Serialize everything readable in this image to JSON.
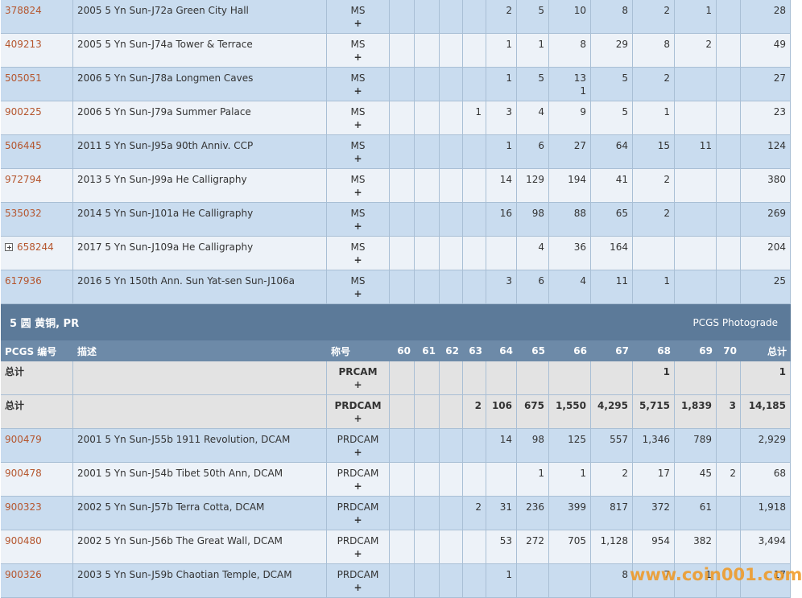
{
  "rows_top": [
    {
      "id": "378824",
      "desc": "2005 5 Yn Sun-J72a Green City Hall",
      "designation": "MS",
      "plus": "+",
      "grades": [
        null,
        null,
        null,
        null,
        "2",
        "5",
        "10",
        "8",
        "2",
        "1",
        null
      ],
      "total": "28"
    },
    {
      "id": "409213",
      "desc": "2005 5 Yn Sun-J74a Tower & Terrace",
      "designation": "MS",
      "plus": "+",
      "grades": [
        null,
        null,
        null,
        null,
        "1",
        "1",
        "8",
        "29",
        "8",
        "2",
        null
      ],
      "total": "49"
    },
    {
      "id": "505051",
      "desc": "2006 5 Yn Sun-J78a Longmen Caves",
      "designation": "MS",
      "plus": "+",
      "grades": [
        null,
        null,
        null,
        null,
        "1",
        "5",
        [
          "13",
          "1"
        ],
        "5",
        "2",
        null,
        null
      ],
      "total": "27"
    },
    {
      "id": "900225",
      "desc": "2006 5 Yn Sun-J79a Summer Palace",
      "designation": "MS",
      "plus": "+",
      "grades": [
        null,
        null,
        null,
        "1",
        "3",
        "4",
        "9",
        "5",
        "1",
        null,
        null
      ],
      "total": "23"
    },
    {
      "id": "506445",
      "desc": "2011 5 Yn Sun-J95a 90th Anniv. CCP",
      "designation": "MS",
      "plus": "+",
      "grades": [
        null,
        null,
        null,
        null,
        "1",
        "6",
        "27",
        "64",
        "15",
        "11",
        null
      ],
      "total": "124"
    },
    {
      "id": "972794",
      "desc": "2013 5 Yn Sun-J99a He Calligraphy",
      "designation": "MS",
      "plus": "+",
      "grades": [
        null,
        null,
        null,
        null,
        "14",
        "129",
        "194",
        "41",
        "2",
        null,
        null
      ],
      "total": "380"
    },
    {
      "id": "535032",
      "desc": "2014 5 Yn Sun-J101a He Calligraphy",
      "designation": "MS",
      "plus": "+",
      "grades": [
        null,
        null,
        null,
        null,
        "16",
        "98",
        "88",
        "65",
        "2",
        null,
        null
      ],
      "total": "269"
    },
    {
      "id": "658244",
      "expandable": true,
      "desc": "2017 5 Yn Sun-J109a He Calligraphy",
      "designation": "MS",
      "plus": "+",
      "grades": [
        null,
        null,
        null,
        null,
        null,
        "4",
        "36",
        "164",
        null,
        null,
        null
      ],
      "total": "204"
    },
    {
      "id": "617936",
      "desc": "2016 5 Yn 150th Ann. Sun Yat-sen Sun-J106a",
      "designation": "MS",
      "plus": "+",
      "grades": [
        null,
        null,
        null,
        null,
        "3",
        "6",
        "4",
        "11",
        "1",
        null,
        null
      ],
      "total": "25"
    }
  ],
  "section": {
    "title": "5 圆 黄铜, PR",
    "link": "PCGS Photograde"
  },
  "header": [
    "PCGS 编号",
    "描述",
    "称号",
    "60",
    "61",
    "62",
    "63",
    "64",
    "65",
    "66",
    "67",
    "68",
    "69",
    "70",
    "总计"
  ],
  "summary": [
    {
      "label": "总计",
      "designation": "PRCAM",
      "plus": "+",
      "grades": [
        null,
        null,
        null,
        null,
        null,
        null,
        null,
        null,
        "1",
        null,
        null
      ],
      "total": "1"
    },
    {
      "label": "总计",
      "designation": "PRDCAM",
      "plus": "+",
      "grades": [
        null,
        null,
        null,
        "2",
        "106",
        "675",
        "1,550",
        "4,295",
        "5,715",
        "1,839",
        "3"
      ],
      "total": "14,185"
    }
  ],
  "rows_bottom": [
    {
      "id": "900479",
      "desc": "2001 5 Yn Sun-J55b 1911 Revolution, DCAM",
      "designation": "PRDCAM",
      "plus": "+",
      "grades": [
        null,
        null,
        null,
        null,
        "14",
        "98",
        "125",
        "557",
        "1,346",
        "789",
        null
      ],
      "total": "2,929"
    },
    {
      "id": "900478",
      "desc": "2001 5 Yn Sun-J54b Tibet 50th Ann, DCAM",
      "designation": "PRDCAM",
      "plus": "+",
      "grades": [
        null,
        null,
        null,
        null,
        null,
        "1",
        "1",
        "2",
        "17",
        "45",
        "2"
      ],
      "total": "68"
    },
    {
      "id": "900323",
      "desc": "2002 5 Yn Sun-J57b Terra Cotta, DCAM",
      "designation": "PRDCAM",
      "plus": "+",
      "grades": [
        null,
        null,
        null,
        "2",
        "31",
        "236",
        "399",
        "817",
        "372",
        "61",
        null
      ],
      "total": "1,918"
    },
    {
      "id": "900480",
      "desc": "2002 5 Yn Sun-J56b The Great Wall, DCAM",
      "designation": "PRDCAM",
      "plus": "+",
      "grades": [
        null,
        null,
        null,
        null,
        "53",
        "272",
        "705",
        "1,128",
        "954",
        "382",
        null
      ],
      "total": "3,494"
    },
    {
      "id": "900326",
      "desc": "2003 5 Yn Sun-J59b Chaotian Temple, DCAM",
      "designation": "PRDCAM",
      "plus": "+",
      "grades": [
        null,
        null,
        null,
        null,
        "1",
        null,
        null,
        "8",
        "7",
        "1",
        null
      ],
      "total": "17"
    }
  ],
  "watermark": "www.coin001.com"
}
